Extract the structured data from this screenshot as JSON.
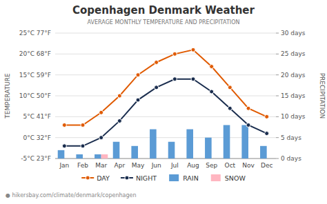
{
  "chart_data": {
    "type": "bar",
    "title": "Copenhagen Denmark Weather",
    "subtitle": "AVERAGE MONTHLY TEMPERATURE AND PRECIPITATION",
    "footer": "● hikersbay.com/climate/denmark/copenhagen",
    "ylabel": "TEMPERATURE",
    "y2label": "PRECIPITATION",
    "categories": [
      "Jan",
      "Feb",
      "Mar",
      "Apr",
      "May",
      "Jun",
      "Jul",
      "Aug",
      "Sep",
      "Oct",
      "Nov",
      "Dec"
    ],
    "series": [
      {
        "name": "DAY",
        "type": "line",
        "marker": "circle",
        "color": "#e05a00",
        "values": [
          3,
          3,
          6,
          10,
          15,
          18,
          20,
          21,
          17,
          12,
          7,
          5
        ]
      },
      {
        "name": "NIGHT",
        "type": "line",
        "marker": "circle",
        "color": "#1a2d4e",
        "values": [
          -2,
          -2,
          0,
          4,
          9,
          12,
          14,
          14,
          11,
          7,
          3,
          1
        ]
      },
      {
        "name": "RAIN",
        "type": "bar",
        "axis": "y2",
        "color": "#5b9bd5",
        "values": [
          2,
          1,
          1,
          4,
          3,
          7,
          4,
          7,
          5,
          8,
          8,
          3
        ]
      },
      {
        "name": "SNOW",
        "type": "bar",
        "axis": "y2",
        "color": "#ffb6c1",
        "values": [
          0,
          0,
          1,
          0,
          0,
          0,
          0,
          0,
          0,
          0,
          0,
          0
        ]
      }
    ],
    "ylim": [
      -5,
      25
    ],
    "yticks": [
      {
        "value": -5,
        "label": "-5°C 23°F"
      },
      {
        "value": 0,
        "label": "0°C 32°F"
      },
      {
        "value": 5,
        "label": "5°C 41°F"
      },
      {
        "value": 10,
        "label": "10°C 50°F"
      },
      {
        "value": 15,
        "label": "15°C 59°F"
      },
      {
        "value": 20,
        "label": "20°C 68°F"
      },
      {
        "value": 25,
        "label": "25°C 77°F"
      }
    ],
    "y2lim": [
      0,
      30
    ],
    "y2ticks": [
      {
        "value": 0,
        "label": "0 days"
      },
      {
        "value": 5,
        "label": "5 days"
      },
      {
        "value": 10,
        "label": "10 days"
      },
      {
        "value": 15,
        "label": "15 days"
      },
      {
        "value": 20,
        "label": "20 days"
      },
      {
        "value": 25,
        "label": "25 days"
      },
      {
        "value": 30,
        "label": "30 days"
      }
    ],
    "grid": true,
    "legend": "bottom"
  }
}
